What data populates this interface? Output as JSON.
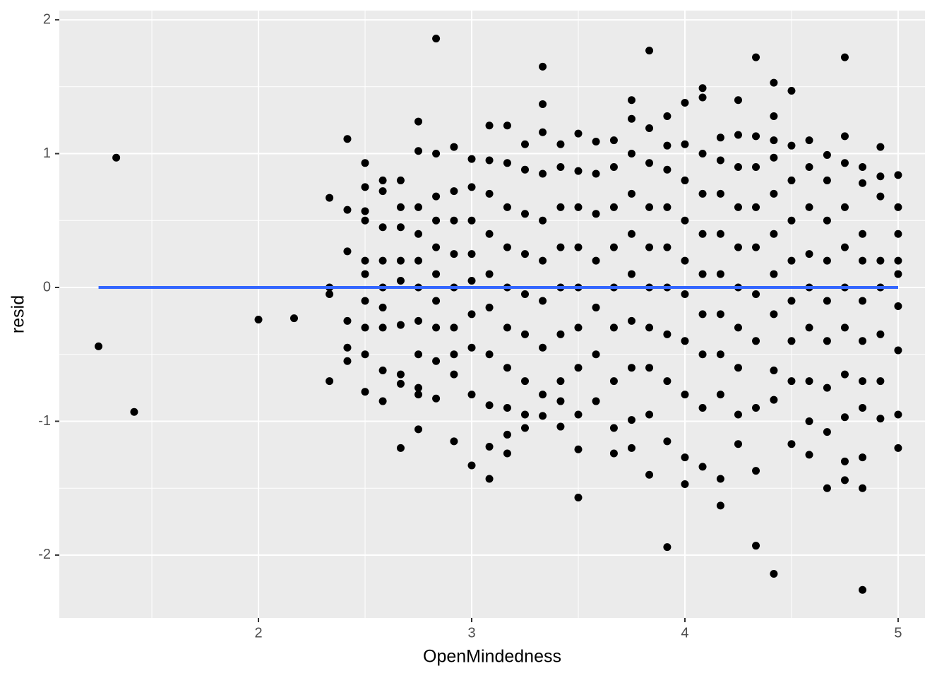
{
  "chart_data": {
    "type": "scatter",
    "x_label": "OpenMindedness",
    "y_label": "resid",
    "xlim": [
      1.066,
      5.126
    ],
    "ylim": [
      -2.47,
      2.069
    ],
    "xticks": [
      2,
      3,
      4,
      5
    ],
    "yticks": [
      -2,
      -1,
      0,
      1,
      2
    ],
    "xminor": [
      1.5,
      2.5,
      3.5,
      4.5
    ],
    "yminor": [
      -1.5,
      -0.5,
      0.5,
      1.5
    ],
    "grid": true,
    "color": "#000000",
    "x": [
      1.25,
      1.333,
      1.417,
      2.0,
      2.167,
      2.333,
      2.333,
      2.333,
      2.333,
      2.417,
      2.417,
      2.417,
      2.417,
      2.417,
      2.417,
      2.5,
      2.5,
      2.5,
      2.5,
      2.5,
      2.5,
      2.5,
      2.5,
      2.5,
      2.5,
      2.583,
      2.583,
      2.583,
      2.583,
      2.583,
      2.583,
      2.583,
      2.583,
      2.583,
      2.667,
      2.667,
      2.667,
      2.667,
      2.667,
      2.667,
      2.667,
      2.667,
      2.667,
      2.75,
      2.75,
      2.75,
      2.75,
      2.75,
      2.75,
      2.75,
      2.75,
      2.75,
      2.75,
      2.75,
      2.833,
      2.833,
      2.833,
      2.833,
      2.833,
      2.833,
      2.833,
      2.833,
      2.833,
      2.833,
      2.917,
      2.917,
      2.917,
      2.917,
      2.917,
      2.917,
      2.917,
      2.917,
      2.917,
      3.0,
      3.0,
      3.0,
      3.0,
      3.0,
      3.0,
      3.0,
      3.0,
      3.0,
      3.083,
      3.083,
      3.083,
      3.083,
      3.083,
      3.083,
      3.083,
      3.083,
      3.083,
      3.083,
      3.167,
      3.167,
      3.167,
      3.167,
      3.167,
      3.167,
      3.167,
      3.167,
      3.167,
      3.167,
      3.25,
      3.25,
      3.25,
      3.25,
      3.25,
      3.25,
      3.25,
      3.25,
      3.25,
      3.333,
      3.333,
      3.333,
      3.333,
      3.333,
      3.333,
      3.333,
      3.333,
      3.333,
      3.333,
      3.417,
      3.417,
      3.417,
      3.417,
      3.417,
      3.417,
      3.417,
      3.417,
      3.417,
      3.5,
      3.5,
      3.5,
      3.5,
      3.5,
      3.5,
      3.5,
      3.5,
      3.5,
      3.5,
      3.583,
      3.583,
      3.583,
      3.583,
      3.583,
      3.583,
      3.583,
      3.667,
      3.667,
      3.667,
      3.667,
      3.667,
      3.667,
      3.667,
      3.667,
      3.667,
      3.75,
      3.75,
      3.75,
      3.75,
      3.75,
      3.75,
      3.75,
      3.75,
      3.75,
      3.75,
      3.833,
      3.833,
      3.833,
      3.833,
      3.833,
      3.833,
      3.833,
      3.833,
      3.833,
      3.833,
      3.917,
      3.917,
      3.917,
      3.917,
      3.917,
      3.917,
      3.917,
      3.917,
      3.917,
      3.917,
      4.0,
      4.0,
      4.0,
      4.0,
      4.0,
      4.0,
      4.0,
      4.0,
      4.0,
      4.0,
      4.083,
      4.083,
      4.083,
      4.083,
      4.083,
      4.083,
      4.083,
      4.083,
      4.083,
      4.083,
      4.167,
      4.167,
      4.167,
      4.167,
      4.167,
      4.167,
      4.167,
      4.167,
      4.167,
      4.167,
      4.25,
      4.25,
      4.25,
      4.25,
      4.25,
      4.25,
      4.25,
      4.25,
      4.25,
      4.25,
      4.333,
      4.333,
      4.333,
      4.333,
      4.333,
      4.333,
      4.333,
      4.333,
      4.333,
      4.333,
      4.417,
      4.417,
      4.417,
      4.417,
      4.417,
      4.417,
      4.417,
      4.417,
      4.417,
      4.417,
      4.417,
      4.5,
      4.5,
      4.5,
      4.5,
      4.5,
      4.5,
      4.5,
      4.5,
      4.5,
      4.583,
      4.583,
      4.583,
      4.583,
      4.583,
      4.583,
      4.583,
      4.583,
      4.583,
      4.667,
      4.667,
      4.667,
      4.667,
      4.667,
      4.667,
      4.667,
      4.667,
      4.667,
      4.75,
      4.75,
      4.75,
      4.75,
      4.75,
      4.75,
      4.75,
      4.75,
      4.75,
      4.75,
      4.75,
      4.833,
      4.833,
      4.833,
      4.833,
      4.833,
      4.833,
      4.833,
      4.833,
      4.833,
      4.833,
      4.833,
      4.917,
      4.917,
      4.917,
      4.917,
      4.917,
      4.917,
      4.917,
      4.917,
      5.0,
      5.0,
      5.0,
      5.0,
      5.0,
      5.0,
      5.0,
      5.0,
      5.0
    ],
    "values": [
      -0.44,
      0.97,
      -0.93,
      -0.24,
      -0.23,
      0.67,
      0,
      -0.05,
      -0.7,
      1.11,
      0.58,
      0.27,
      -0.25,
      -0.45,
      -0.55,
      0.93,
      0.75,
      0.57,
      0.5,
      0.2,
      0.1,
      -0.1,
      -0.3,
      -0.5,
      -0.78,
      0.8,
      0.72,
      0.45,
      0.2,
      0,
      -0.15,
      -0.3,
      -0.62,
      -0.85,
      0.8,
      0.6,
      0.45,
      0.2,
      0.05,
      -0.28,
      -0.65,
      -0.72,
      -1.2,
      1.24,
      1.02,
      0.6,
      0.4,
      0.2,
      0,
      -0.25,
      -0.5,
      -0.75,
      -0.8,
      -1.06,
      1.86,
      1.0,
      0.68,
      0.5,
      0.3,
      0.1,
      -0.1,
      -0.3,
      -0.55,
      -0.83,
      1.05,
      0.72,
      0.5,
      0.25,
      0,
      -0.3,
      -0.5,
      -0.65,
      -1.15,
      0.96,
      0.75,
      0.5,
      0.25,
      0.05,
      -0.2,
      -0.45,
      -0.8,
      -1.33,
      1.21,
      0.95,
      0.7,
      0.4,
      0.1,
      -0.15,
      -0.5,
      -0.88,
      -1.19,
      -1.43,
      1.21,
      0.93,
      0.6,
      0.3,
      0,
      -0.3,
      -0.6,
      -0.9,
      -1.1,
      -1.24,
      1.07,
      0.88,
      0.55,
      0.25,
      -0.05,
      -0.35,
      -0.7,
      -0.95,
      -1.05,
      1.65,
      1.37,
      1.16,
      0.85,
      0.5,
      0.2,
      -0.1,
      -0.45,
      -0.8,
      -0.96,
      1.07,
      0.9,
      0.6,
      0.3,
      0,
      -0.35,
      -0.7,
      -0.85,
      -1.04,
      1.15,
      0.87,
      0.6,
      0.3,
      0,
      -0.3,
      -0.6,
      -0.95,
      -1.21,
      -1.57,
      1.09,
      0.85,
      0.55,
      0.2,
      -0.15,
      -0.5,
      -0.85,
      1.1,
      0.9,
      0.6,
      0.3,
      0,
      -0.3,
      -0.7,
      -1.05,
      -1.24,
      1.4,
      1.26,
      1.0,
      0.7,
      0.4,
      0.1,
      -0.25,
      -0.6,
      -0.99,
      -1.2,
      1.77,
      1.19,
      0.93,
      0.6,
      0.3,
      0,
      -0.3,
      -0.6,
      -0.95,
      -1.4,
      1.28,
      1.06,
      0.88,
      0.6,
      0.3,
      0,
      -0.35,
      -0.7,
      -1.15,
      -1.94,
      1.38,
      1.07,
      0.8,
      0.5,
      0.2,
      -0.05,
      -0.4,
      -0.8,
      -1.27,
      -1.47,
      1.49,
      1.42,
      1.0,
      0.7,
      0.4,
      0.1,
      -0.2,
      -0.5,
      -0.9,
      -1.34,
      1.12,
      0.95,
      0.7,
      0.4,
      0.1,
      -0.2,
      -0.5,
      -0.8,
      -1.43,
      -1.63,
      1.4,
      1.14,
      0.9,
      0.6,
      0.3,
      0,
      -0.3,
      -0.6,
      -0.95,
      -1.17,
      1.72,
      1.13,
      0.9,
      0.6,
      0.3,
      -0.05,
      -0.4,
      -0.9,
      -1.37,
      -1.93,
      1.53,
      1.28,
      1.1,
      0.97,
      0.7,
      0.4,
      0.1,
      -0.2,
      -0.62,
      -0.84,
      -2.14,
      1.47,
      1.06,
      0.8,
      0.5,
      0.2,
      -0.1,
      -0.4,
      -0.7,
      -1.17,
      1.1,
      0.9,
      0.6,
      0.25,
      0,
      -0.3,
      -0.7,
      -1.0,
      -1.25,
      0.99,
      0.8,
      0.5,
      0.2,
      -0.1,
      -0.4,
      -0.75,
      -1.08,
      -1.5,
      1.72,
      1.13,
      0.93,
      0.6,
      0.3,
      0,
      -0.3,
      -0.65,
      -0.97,
      -1.3,
      -1.44,
      0.9,
      0.78,
      0.4,
      0.2,
      -0.1,
      -0.4,
      -0.7,
      -0.9,
      -1.27,
      -1.5,
      -2.26,
      1.05,
      0.83,
      0.68,
      0.2,
      0,
      -0.35,
      -0.7,
      -0.98,
      0.84,
      0.6,
      0.4,
      0.2,
      0.1,
      -0.14,
      -0.47,
      -0.95,
      -1.2
    ],
    "fit": {
      "color": "#3366FF",
      "x": [
        1.25,
        5.0
      ],
      "values": [
        0,
        0
      ]
    }
  }
}
